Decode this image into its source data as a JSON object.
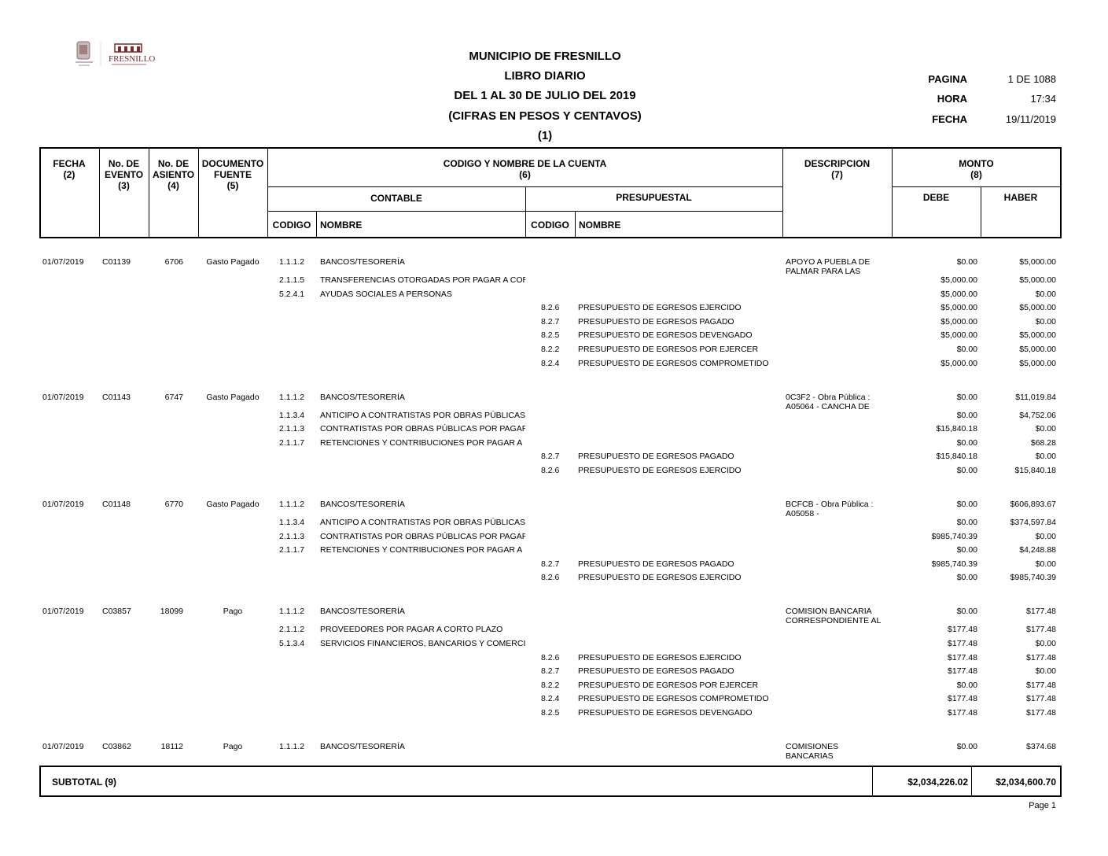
{
  "logo": {
    "text": "FRESNILLO"
  },
  "header": {
    "titles": [
      "MUNICIPIO DE FRESNILLO",
      "LIBRO DIARIO",
      "DEL 1 AL 30 DE JULIO DEL 2019",
      "(CIFRAS EN PESOS Y CENTAVOS)",
      "(1)"
    ],
    "pagina_label": "PAGINA",
    "pagina_value": "1 DE 1088",
    "hora_label": "HORA",
    "hora_value": "17:34",
    "fecha_label": "FECHA",
    "fecha_value": "19/11/2019"
  },
  "columns": {
    "fecha": [
      "FECHA",
      "(2)"
    ],
    "evento": [
      "No. DE",
      "EVENTO",
      "(3)"
    ],
    "asiento": [
      "No. DE",
      "ASIENTO",
      "(4)"
    ],
    "documento": [
      "DOCUMENTO",
      "FUENTE",
      "(5)"
    ],
    "cuenta": [
      "CODIGO Y NOMBRE DE LA CUENTA",
      "(6)"
    ],
    "contable": "CONTABLE",
    "presupuestal": "PRESUPUESTAL",
    "codigo": "CODIGO",
    "nombre": "NOMBRE",
    "descripcion": [
      "DESCRIPCION",
      "(7)"
    ],
    "monto": [
      "MONTO",
      "(8)"
    ],
    "debe": "DEBE",
    "haber": "HABER"
  },
  "entries": [
    {
      "fecha": "01/07/2019",
      "evento": "C01139",
      "asiento": "6706",
      "documento": "Gasto Pagado",
      "descripcion": [
        "APOYO A PUEBLA DE",
        "PALMAR PARA LAS"
      ],
      "lines": [
        {
          "codigo": "1.1.1.2",
          "nombre": "BANCOS/TESORERÍA",
          "pcodigo": "",
          "pnombre": "",
          "debe": "$0.00",
          "haber": "$5,000.00"
        },
        {
          "codigo": "2.1.1.5",
          "nombre": "TRANSFERENCIAS OTORGADAS POR PAGAR A CORTO PLAZO",
          "pcodigo": "",
          "pnombre": "",
          "debe": "$5,000.00",
          "haber": "$5,000.00"
        },
        {
          "codigo": "5.2.4.1",
          "nombre": "AYUDAS SOCIALES A PERSONAS",
          "pcodigo": "",
          "pnombre": "",
          "debe": "$5,000.00",
          "haber": "$0.00"
        },
        {
          "codigo": "",
          "nombre": "",
          "pcodigo": "8.2.6",
          "pnombre": "PRESUPUESTO DE EGRESOS EJERCIDO",
          "debe": "$5,000.00",
          "haber": "$5,000.00"
        },
        {
          "codigo": "",
          "nombre": "",
          "pcodigo": "8.2.7",
          "pnombre": "PRESUPUESTO DE EGRESOS PAGADO",
          "debe": "$5,000.00",
          "haber": "$0.00"
        },
        {
          "codigo": "",
          "nombre": "",
          "pcodigo": "8.2.5",
          "pnombre": "PRESUPUESTO DE EGRESOS DEVENGADO",
          "debe": "$5,000.00",
          "haber": "$5,000.00"
        },
        {
          "codigo": "",
          "nombre": "",
          "pcodigo": "8.2.2",
          "pnombre": "PRESUPUESTO DE EGRESOS POR EJERCER",
          "debe": "$0.00",
          "haber": "$5,000.00"
        },
        {
          "codigo": "",
          "nombre": "",
          "pcodigo": "8.2.4",
          "pnombre": "PRESUPUESTO DE EGRESOS COMPROMETIDO",
          "debe": "$5,000.00",
          "haber": "$5,000.00"
        }
      ]
    },
    {
      "fecha": "01/07/2019",
      "evento": "C01143",
      "asiento": "6747",
      "documento": "Gasto Pagado",
      "descripcion": [
        "0C3F2 - Obra Pública :",
        "A05064 - CANCHA DE"
      ],
      "lines": [
        {
          "codigo": "1.1.1.2",
          "nombre": "BANCOS/TESORERÍA",
          "pcodigo": "",
          "pnombre": "",
          "debe": "$0.00",
          "haber": "$11,019.84"
        },
        {
          "codigo": "1.1.3.4",
          "nombre": "ANTICIPO A CONTRATISTAS POR OBRAS PÚBLICAS",
          "pcodigo": "",
          "pnombre": "",
          "debe": "$0.00",
          "haber": "$4,752.06"
        },
        {
          "codigo": "2.1.1.3",
          "nombre": "CONTRATISTAS POR OBRAS PÚBLICAS POR PAGAR",
          "pcodigo": "",
          "pnombre": "",
          "debe": "$15,840.18",
          "haber": "$0.00"
        },
        {
          "codigo": "2.1.1.7",
          "nombre": "RETENCIONES Y CONTRIBUCIONES POR PAGAR A",
          "pcodigo": "",
          "pnombre": "",
          "debe": "$0.00",
          "haber": "$68.28"
        },
        {
          "codigo": "",
          "nombre": "",
          "pcodigo": "8.2.7",
          "pnombre": "PRESUPUESTO DE EGRESOS PAGADO",
          "debe": "$15,840.18",
          "haber": "$0.00"
        },
        {
          "codigo": "",
          "nombre": "",
          "pcodigo": "8.2.6",
          "pnombre": "PRESUPUESTO DE EGRESOS EJERCIDO",
          "debe": "$0.00",
          "haber": "$15,840.18"
        }
      ]
    },
    {
      "fecha": "01/07/2019",
      "evento": "C01148",
      "asiento": "6770",
      "documento": "Gasto Pagado",
      "descripcion": [
        "BCFCB - Obra Pública :",
        "A05058 -"
      ],
      "lines": [
        {
          "codigo": "1.1.1.2",
          "nombre": "BANCOS/TESORERÍA",
          "pcodigo": "",
          "pnombre": "",
          "debe": "$0.00",
          "haber": "$606,893.67"
        },
        {
          "codigo": "1.1.3.4",
          "nombre": "ANTICIPO A CONTRATISTAS POR OBRAS PÚBLICAS",
          "pcodigo": "",
          "pnombre": "",
          "debe": "$0.00",
          "haber": "$374,597.84"
        },
        {
          "codigo": "2.1.1.3",
          "nombre": "CONTRATISTAS POR OBRAS PÚBLICAS POR PAGAR",
          "pcodigo": "",
          "pnombre": "",
          "debe": "$985,740.39",
          "haber": "$0.00"
        },
        {
          "codigo": "2.1.1.7",
          "nombre": "RETENCIONES Y CONTRIBUCIONES POR PAGAR A",
          "pcodigo": "",
          "pnombre": "",
          "debe": "$0.00",
          "haber": "$4,248.88"
        },
        {
          "codigo": "",
          "nombre": "",
          "pcodigo": "8.2.7",
          "pnombre": "PRESUPUESTO DE EGRESOS PAGADO",
          "debe": "$985,740.39",
          "haber": "$0.00"
        },
        {
          "codigo": "",
          "nombre": "",
          "pcodigo": "8.2.6",
          "pnombre": "PRESUPUESTO DE EGRESOS EJERCIDO",
          "debe": "$0.00",
          "haber": "$985,740.39"
        }
      ]
    },
    {
      "fecha": "01/07/2019",
      "evento": "C03857",
      "asiento": "18099",
      "documento": "Pago",
      "descripcion": [
        "COMISION BANCARIA",
        "CORRESPONDIENTE AL"
      ],
      "lines": [
        {
          "codigo": "1.1.1.2",
          "nombre": "BANCOS/TESORERÍA",
          "pcodigo": "",
          "pnombre": "",
          "debe": "$0.00",
          "haber": "$177.48"
        },
        {
          "codigo": "2.1.1.2",
          "nombre": "PROVEEDORES POR PAGAR A CORTO PLAZO",
          "pcodigo": "",
          "pnombre": "",
          "debe": "$177.48",
          "haber": "$177.48"
        },
        {
          "codigo": "5.1.3.4",
          "nombre": "SERVICIOS FINANCIEROS, BANCARIOS Y COMERCIALES",
          "pcodigo": "",
          "pnombre": "",
          "debe": "$177.48",
          "haber": "$0.00"
        },
        {
          "codigo": "",
          "nombre": "",
          "pcodigo": "8.2.6",
          "pnombre": "PRESUPUESTO DE EGRESOS EJERCIDO",
          "debe": "$177.48",
          "haber": "$177.48"
        },
        {
          "codigo": "",
          "nombre": "",
          "pcodigo": "8.2.7",
          "pnombre": "PRESUPUESTO DE EGRESOS PAGADO",
          "debe": "$177.48",
          "haber": "$0.00"
        },
        {
          "codigo": "",
          "nombre": "",
          "pcodigo": "8.2.2",
          "pnombre": "PRESUPUESTO DE EGRESOS POR EJERCER",
          "debe": "$0.00",
          "haber": "$177.48"
        },
        {
          "codigo": "",
          "nombre": "",
          "pcodigo": "8.2.4",
          "pnombre": "PRESUPUESTO DE EGRESOS COMPROMETIDO",
          "debe": "$177.48",
          "haber": "$177.48"
        },
        {
          "codigo": "",
          "nombre": "",
          "pcodigo": "8.2.5",
          "pnombre": "PRESUPUESTO DE EGRESOS DEVENGADO",
          "debe": "$177.48",
          "haber": "$177.48"
        }
      ]
    },
    {
      "fecha": "01/07/2019",
      "evento": "C03862",
      "asiento": "18112",
      "documento": "Pago",
      "descripcion": [
        "COMISIONES",
        "BANCARIAS"
      ],
      "lines": [
        {
          "codigo": "1.1.1.2",
          "nombre": "BANCOS/TESORERÍA",
          "pcodigo": "",
          "pnombre": "",
          "debe": "$0.00",
          "haber": "$374.68"
        }
      ]
    }
  ],
  "subtotal": {
    "label": "SUBTOTAL (9)",
    "debe": "$2,034,226.02",
    "haber": "$2,034,600.70"
  },
  "footer": {
    "page": "Page 1"
  }
}
